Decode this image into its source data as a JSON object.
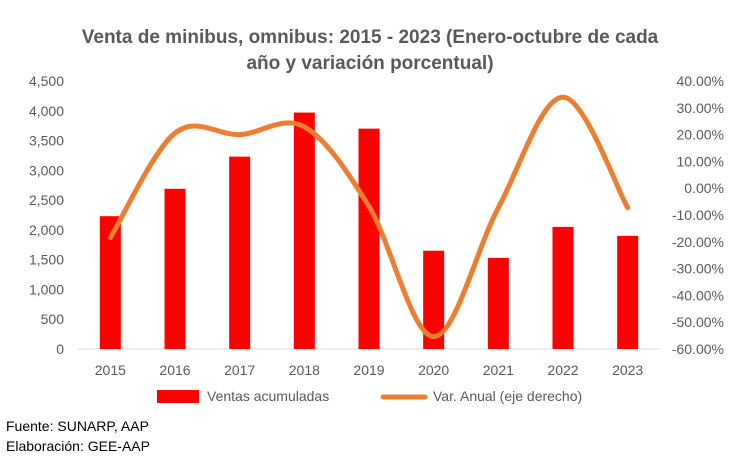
{
  "chart_data": {
    "type": "bar+line",
    "title_lines": [
      "Venta de minibus, omnibus: 2015 - 2023 (Enero-octubre de cada",
      "año y variación porcentual)"
    ],
    "categories": [
      "2015",
      "2016",
      "2017",
      "2018",
      "2019",
      "2020",
      "2021",
      "2022",
      "2023"
    ],
    "series": [
      {
        "name": "Ventas acumuladas",
        "type": "bar",
        "axis": "left",
        "color": "#ff0000",
        "values": [
          2230,
          2690,
          3230,
          3970,
          3700,
          1650,
          1530,
          2050,
          1900
        ]
      },
      {
        "name": "Var. Anual (eje derecho)",
        "type": "line",
        "axis": "right",
        "color": "#ed7d31",
        "values": [
          -18.5,
          20.6,
          20.0,
          22.9,
          -6.8,
          -55.4,
          -7.3,
          34.0,
          -7.3
        ]
      }
    ],
    "y_left": {
      "range": [
        0,
        4500
      ],
      "ticks": [
        "0",
        "500",
        "1,000",
        "1,500",
        "2,000",
        "2,500",
        "3,000",
        "3,500",
        "4,000",
        "4,500"
      ]
    },
    "y_right": {
      "range": [
        -60,
        40
      ],
      "ticks": [
        "-60.00%",
        "-50.00%",
        "-40.00%",
        "-30.00%",
        "-20.00%",
        "-10.00%",
        "0.00%",
        "10.00%",
        "20.00%",
        "30.00%",
        "40.00%"
      ]
    },
    "grid": false,
    "legend_position": "bottom"
  },
  "footnotes": {
    "source": "Fuente: SUNARP, AAP",
    "elaboration": "Elaboración: GEE-AAP"
  }
}
